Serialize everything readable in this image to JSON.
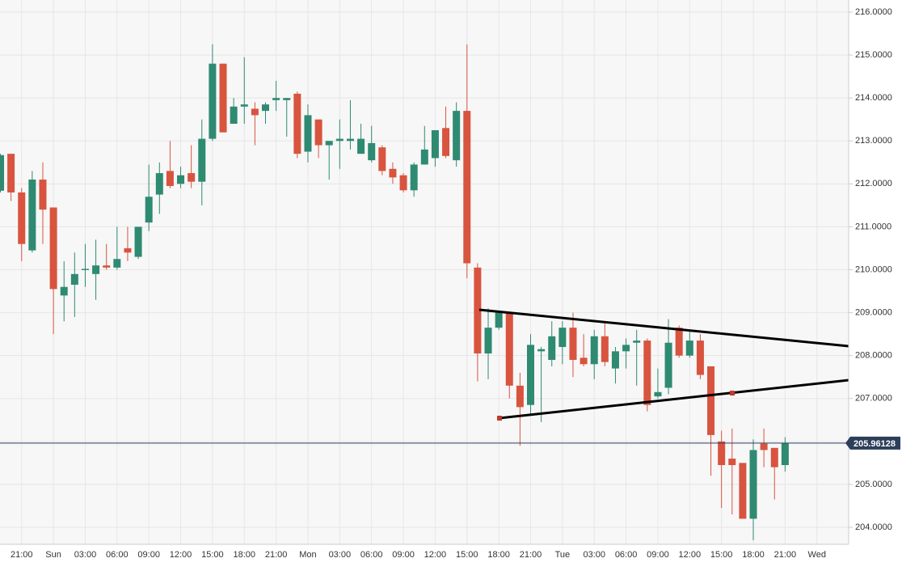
{
  "chart_data": {
    "type": "candlestick",
    "categories": [
      null,
      null,
      "21:00",
      null,
      null,
      "Sun",
      null,
      null,
      "03:00",
      null,
      null,
      "06:00",
      null,
      null,
      "09:00",
      null,
      null,
      "12:00",
      null,
      null,
      "15:00",
      null,
      null,
      "18:00",
      null,
      null,
      "21:00",
      null,
      null,
      "Mon",
      null,
      null,
      "03:00",
      null,
      null,
      "06:00",
      null,
      null,
      "09:00",
      null,
      null,
      "12:00",
      null,
      null,
      "15:00",
      null,
      null,
      "18:00",
      null,
      null,
      "21:00",
      null,
      null,
      "Tue",
      null,
      null,
      "03:00",
      null,
      null,
      "06:00",
      null,
      null,
      "09:00",
      null,
      null,
      "12:00",
      null,
      null,
      "15:00",
      null,
      null,
      "18:00",
      null,
      null,
      "21:00",
      null,
      null,
      "Wed"
    ],
    "open": [
      211.84,
      212.7,
      211.8,
      210.45,
      212.1,
      211.45,
      209.4,
      209.65,
      210.0,
      209.9,
      210.1,
      210.05,
      210.5,
      210.3,
      211.1,
      211.75,
      212.3,
      212.0,
      212.25,
      212.05,
      213.05,
      214.8,
      213.4,
      213.8,
      213.75,
      213.7,
      213.95,
      213.95,
      214.1,
      212.75,
      213.5,
      212.9,
      213.0,
      213.0,
      212.7,
      212.55,
      212.85,
      212.35,
      212.2,
      211.85,
      212.45,
      212.6,
      213.3,
      212.55,
      213.7,
      210.05,
      208.05,
      208.65,
      209.0,
      207.3,
      206.85,
      208.1,
      207.9,
      208.2,
      208.65,
      207.95,
      207.8,
      208.45,
      207.7,
      208.1,
      208.3,
      208.35,
      207.05,
      207.25,
      208.65,
      208.0,
      208.35,
      207.75,
      206.0,
      205.6,
      205.5,
      204.2,
      205.95,
      205.85,
      205.45,
      null,
      null,
      null
    ],
    "high": [
      212.7,
      212.7,
      211.9,
      212.3,
      212.5,
      211.45,
      210.2,
      210.4,
      210.6,
      210.7,
      210.6,
      211.0,
      211.0,
      211.0,
      212.45,
      212.5,
      213.0,
      212.4,
      212.9,
      213.5,
      215.25,
      214.8,
      214.0,
      214.95,
      213.9,
      213.9,
      214.4,
      214.0,
      214.15,
      213.85,
      213.5,
      213.0,
      213.5,
      213.95,
      213.4,
      213.35,
      212.9,
      212.5,
      212.25,
      212.5,
      213.35,
      213.25,
      213.8,
      213.9,
      215.25,
      210.15,
      209.1,
      209.0,
      209.0,
      207.6,
      208.5,
      208.2,
      208.8,
      208.8,
      209.0,
      208.5,
      208.6,
      208.75,
      208.2,
      208.4,
      208.6,
      208.4,
      207.7,
      208.85,
      208.7,
      208.6,
      208.5,
      207.75,
      206.25,
      206.3,
      205.5,
      206.05,
      206.3,
      205.85,
      206.1,
      null,
      null,
      null
    ],
    "low": [
      211.8,
      211.6,
      210.2,
      210.4,
      210.6,
      208.5,
      208.8,
      208.9,
      209.6,
      209.3,
      210.0,
      210.0,
      210.2,
      210.25,
      210.9,
      211.3,
      211.9,
      211.9,
      211.9,
      211.5,
      213.0,
      213.2,
      213.4,
      213.4,
      212.9,
      213.4,
      213.7,
      213.1,
      212.6,
      212.5,
      212.6,
      212.1,
      212.35,
      212.8,
      212.7,
      212.5,
      212.2,
      212.0,
      211.8,
      211.7,
      212.45,
      212.4,
      212.6,
      212.4,
      209.8,
      207.4,
      207.45,
      208.6,
      207.0,
      205.9,
      206.6,
      206.45,
      207.75,
      207.8,
      207.5,
      207.75,
      207.45,
      207.75,
      207.35,
      207.7,
      207.3,
      206.7,
      207.0,
      207.1,
      207.95,
      207.95,
      207.45,
      205.2,
      204.45,
      204.3,
      204.2,
      203.7,
      205.4,
      204.65,
      205.3,
      null,
      null,
      null
    ],
    "close": [
      212.67,
      211.8,
      210.6,
      212.1,
      211.4,
      209.55,
      209.6,
      209.9,
      210.02,
      210.1,
      210.05,
      210.25,
      210.4,
      211.0,
      211.7,
      212.25,
      211.95,
      212.2,
      212.05,
      213.05,
      214.8,
      213.2,
      213.8,
      213.85,
      213.6,
      213.85,
      214.0,
      214.0,
      212.7,
      213.6,
      212.9,
      213.0,
      213.05,
      213.05,
      213.05,
      212.95,
      212.3,
      212.15,
      211.85,
      212.45,
      212.8,
      213.25,
      212.65,
      213.7,
      210.15,
      208.05,
      208.65,
      209.0,
      207.3,
      206.8,
      208.25,
      208.15,
      208.45,
      208.65,
      207.9,
      207.8,
      208.45,
      207.85,
      208.1,
      208.25,
      208.35,
      206.85,
      207.15,
      208.3,
      208.0,
      208.35,
      207.55,
      206.15,
      205.45,
      205.45,
      204.2,
      205.8,
      205.8,
      205.4,
      205.96,
      null,
      null,
      null
    ],
    "up_color": "#2f8a72",
    "down_color": "#d8543f",
    "last_price": 205.96128,
    "ylim": [
      203.6,
      216.3
    ],
    "yticks": [
      {
        "value": 204,
        "label": "204.0000"
      },
      {
        "value": 205,
        "label": "205.0000"
      },
      {
        "value": 206,
        "label": "206.0000"
      },
      {
        "value": 207,
        "label": "207.0000"
      },
      {
        "value": 208,
        "label": "208.0000"
      },
      {
        "value": 209,
        "label": "209.0000"
      },
      {
        "value": 210,
        "label": "210.0000"
      },
      {
        "value": 211,
        "label": "211.0000"
      },
      {
        "value": 212,
        "label": "212.0000"
      },
      {
        "value": 213,
        "label": "213.0000"
      },
      {
        "value": 214,
        "label": "214.0000"
      },
      {
        "value": 215,
        "label": "215.0000"
      },
      {
        "value": 216,
        "label": "216.0000"
      }
    ],
    "grid": true
  }
}
